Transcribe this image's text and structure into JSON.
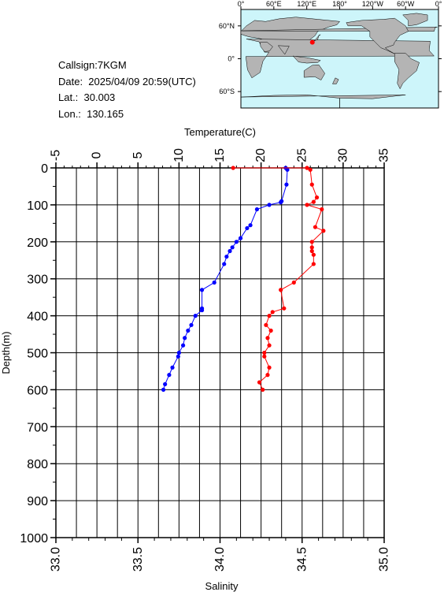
{
  "info": {
    "callsign": "Callsign:7KGM",
    "date": "Date:  2025/04/09 20:59(UTC)",
    "lat": "Lat.:  30.003",
    "lon": "Lon.:  130.165"
  },
  "map": {
    "lon_labels": [
      "0°",
      "60°E",
      "120°E",
      "180°",
      "120°W",
      "60°W",
      "0°"
    ],
    "lat_labels": [
      "60°N",
      "0°",
      "60°S"
    ],
    "ocean_color": "#cdf5fa",
    "land_color": "#b4b4b4",
    "marker_color": "#ff0000",
    "marker": {
      "lon": 130.165,
      "lat": 30.003
    }
  },
  "chart_data": {
    "type": "line",
    "y_axis": {
      "label": "Depth(m)",
      "range": [
        0,
        1000
      ],
      "reversed": true,
      "ticks": [
        "0",
        "100",
        "200",
        "300",
        "400",
        "500",
        "600",
        "700",
        "800",
        "900",
        "1000"
      ]
    },
    "top_axis": {
      "label": "Temperature(C)",
      "range": [
        -5,
        35
      ],
      "ticks": [
        "-5",
        "0",
        "5",
        "10",
        "15",
        "20",
        "25",
        "30",
        "35"
      ]
    },
    "bottom_axis": {
      "label": "Salinity",
      "range": [
        33.0,
        35.0
      ],
      "ticks": [
        "33.0",
        "33.5",
        "34.0",
        "34.5",
        "35.0"
      ]
    },
    "grid": true,
    "series": [
      {
        "name": "Temperature(C)",
        "color": "#0000ff",
        "points": [
          [
            23.0,
            0
          ],
          [
            23.2,
            5
          ],
          [
            23.1,
            45
          ],
          [
            22.5,
            90
          ],
          [
            22.4,
            93
          ],
          [
            21.0,
            100
          ],
          [
            19.5,
            112
          ],
          [
            18.7,
            155
          ],
          [
            18.3,
            163
          ],
          [
            17.5,
            190
          ],
          [
            17.0,
            200
          ],
          [
            16.5,
            215
          ],
          [
            16.2,
            225
          ],
          [
            15.8,
            240
          ],
          [
            15.5,
            260
          ],
          [
            14.3,
            310
          ],
          [
            12.8,
            330
          ],
          [
            12.8,
            380
          ],
          [
            12.8,
            385
          ],
          [
            12.0,
            400
          ],
          [
            11.5,
            425
          ],
          [
            11.1,
            440
          ],
          [
            10.7,
            460
          ],
          [
            10.5,
            480
          ],
          [
            10.0,
            500
          ],
          [
            9.9,
            510
          ],
          [
            9.2,
            540
          ],
          [
            8.8,
            560
          ],
          [
            8.3,
            585
          ],
          [
            8.1,
            600
          ]
        ]
      },
      {
        "name": "Salinity",
        "color": "#ff0000",
        "points": [
          [
            34.08,
            0
          ],
          [
            34.53,
            0
          ],
          [
            34.55,
            5
          ],
          [
            34.56,
            45
          ],
          [
            34.59,
            80
          ],
          [
            34.57,
            92
          ],
          [
            34.53,
            100
          ],
          [
            34.62,
            112
          ],
          [
            34.58,
            160
          ],
          [
            34.63,
            170
          ],
          [
            34.56,
            200
          ],
          [
            34.56,
            215
          ],
          [
            34.56,
            225
          ],
          [
            34.57,
            235
          ],
          [
            34.57,
            260
          ],
          [
            34.45,
            310
          ],
          [
            34.37,
            330
          ],
          [
            34.39,
            380
          ],
          [
            34.32,
            390
          ],
          [
            34.3,
            400
          ],
          [
            34.28,
            425
          ],
          [
            34.31,
            440
          ],
          [
            34.29,
            460
          ],
          [
            34.3,
            480
          ],
          [
            34.27,
            500
          ],
          [
            34.27,
            510
          ],
          [
            34.3,
            540
          ],
          [
            34.29,
            560
          ],
          [
            34.24,
            580
          ],
          [
            34.26,
            600
          ]
        ]
      }
    ]
  }
}
